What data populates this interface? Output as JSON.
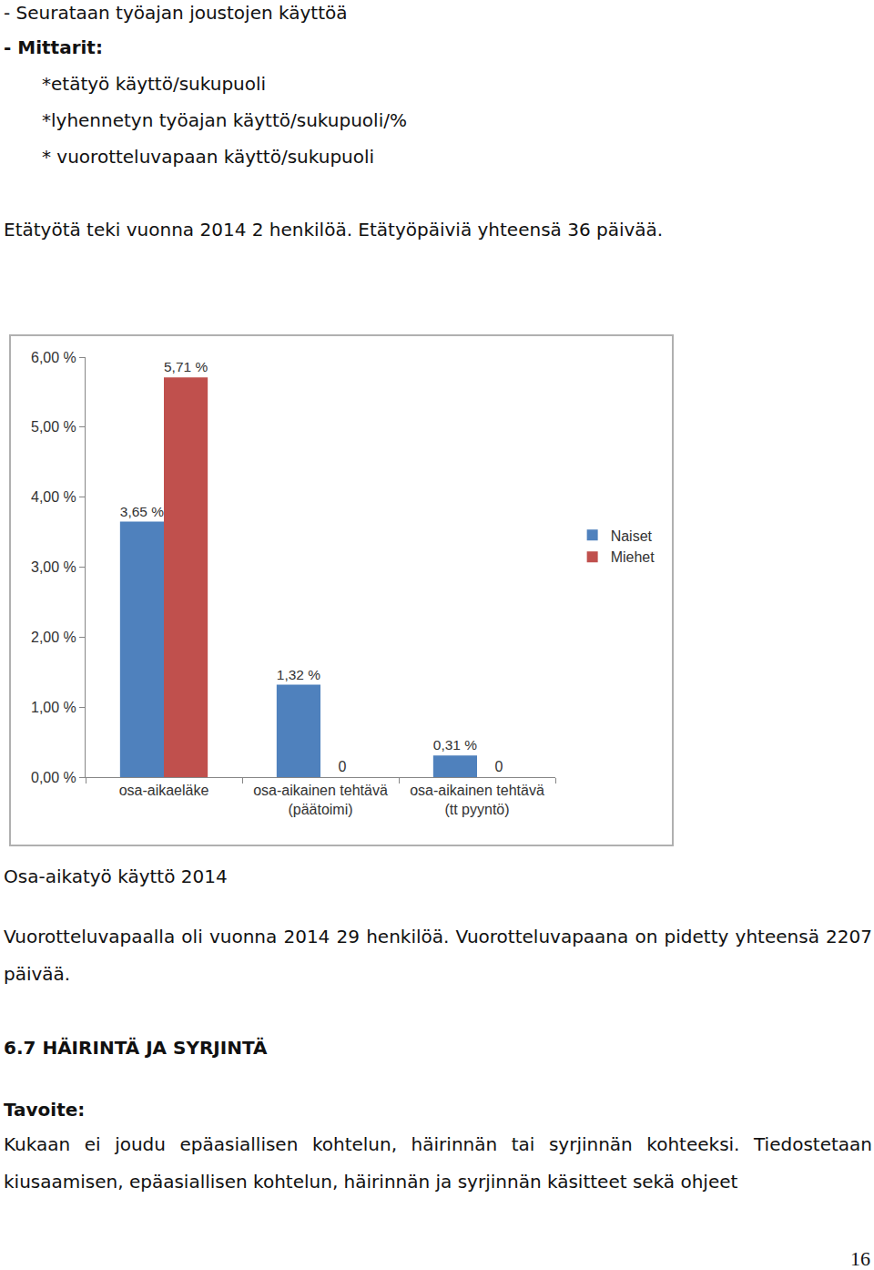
{
  "document": {
    "intro": "- Seurataan työajan joustojen käyttöä",
    "measures_heading": "- Mittarit:",
    "measures": [
      "*etätyö käyttö/sukupuoli",
      "*lyhennetyn työajan käyttö/sukupuoli/%",
      "* vuorotteluvapaan käyttö/sukupuoli"
    ],
    "telework": "Etätyötä teki vuonna 2014 2 henkilöä. Etätyöpäiviä yhteensä 36 päivää.",
    "chart_caption": "Osa-aikatyö käyttö 2014",
    "rotation_leave": "Vuorotteluvapaalla oli vuonna 2014 29 henkilöä. Vuorotteluvapaana on pidetty yhteensä 2207 päivää.",
    "section_heading": "6.7 HÄIRINTÄ JA SYRJINTÄ",
    "goal_label": "Tavoite:",
    "goal_text": "Kukaan ei joudu epäasiallisen kohtelun, häirinnän tai syrjinnän kohteeksi. Tiedostetaan kiusaamisen, epäasiallisen kohtelun, häirinnän ja syrjinnän käsitteet sekä ohjeet",
    "page_number": "16"
  },
  "chart_data": {
    "type": "bar",
    "categories": [
      "osa-aikaeläke",
      "osa-aikainen tehtävä (päätoimi)",
      "osa-aikainen tehtävä (tt pyyntö)"
    ],
    "series": [
      {
        "name": "Naiset",
        "color": "#4f81bd",
        "values": [
          3.65,
          1.32,
          0.31
        ],
        "value_labels": [
          "3,65 %",
          "1,32 %",
          "0,31 %"
        ]
      },
      {
        "name": "Miehet",
        "color": "#c0504d",
        "values": [
          5.71,
          0,
          0
        ],
        "value_labels": [
          "5,71 %",
          "0",
          "0"
        ]
      }
    ],
    "ylim": [
      0,
      6
    ],
    "yticks": [
      {
        "value": 0,
        "label": "0,00 %"
      },
      {
        "value": 1,
        "label": "1,00 %"
      },
      {
        "value": 2,
        "label": "2,00 %"
      },
      {
        "value": 3,
        "label": "3,00 %"
      },
      {
        "value": 4,
        "label": "4,00 %"
      },
      {
        "value": 5,
        "label": "5,00 %"
      },
      {
        "value": 6,
        "label": "6,00 %"
      }
    ],
    "grid": false,
    "legend": "right",
    "data_labels": true
  }
}
